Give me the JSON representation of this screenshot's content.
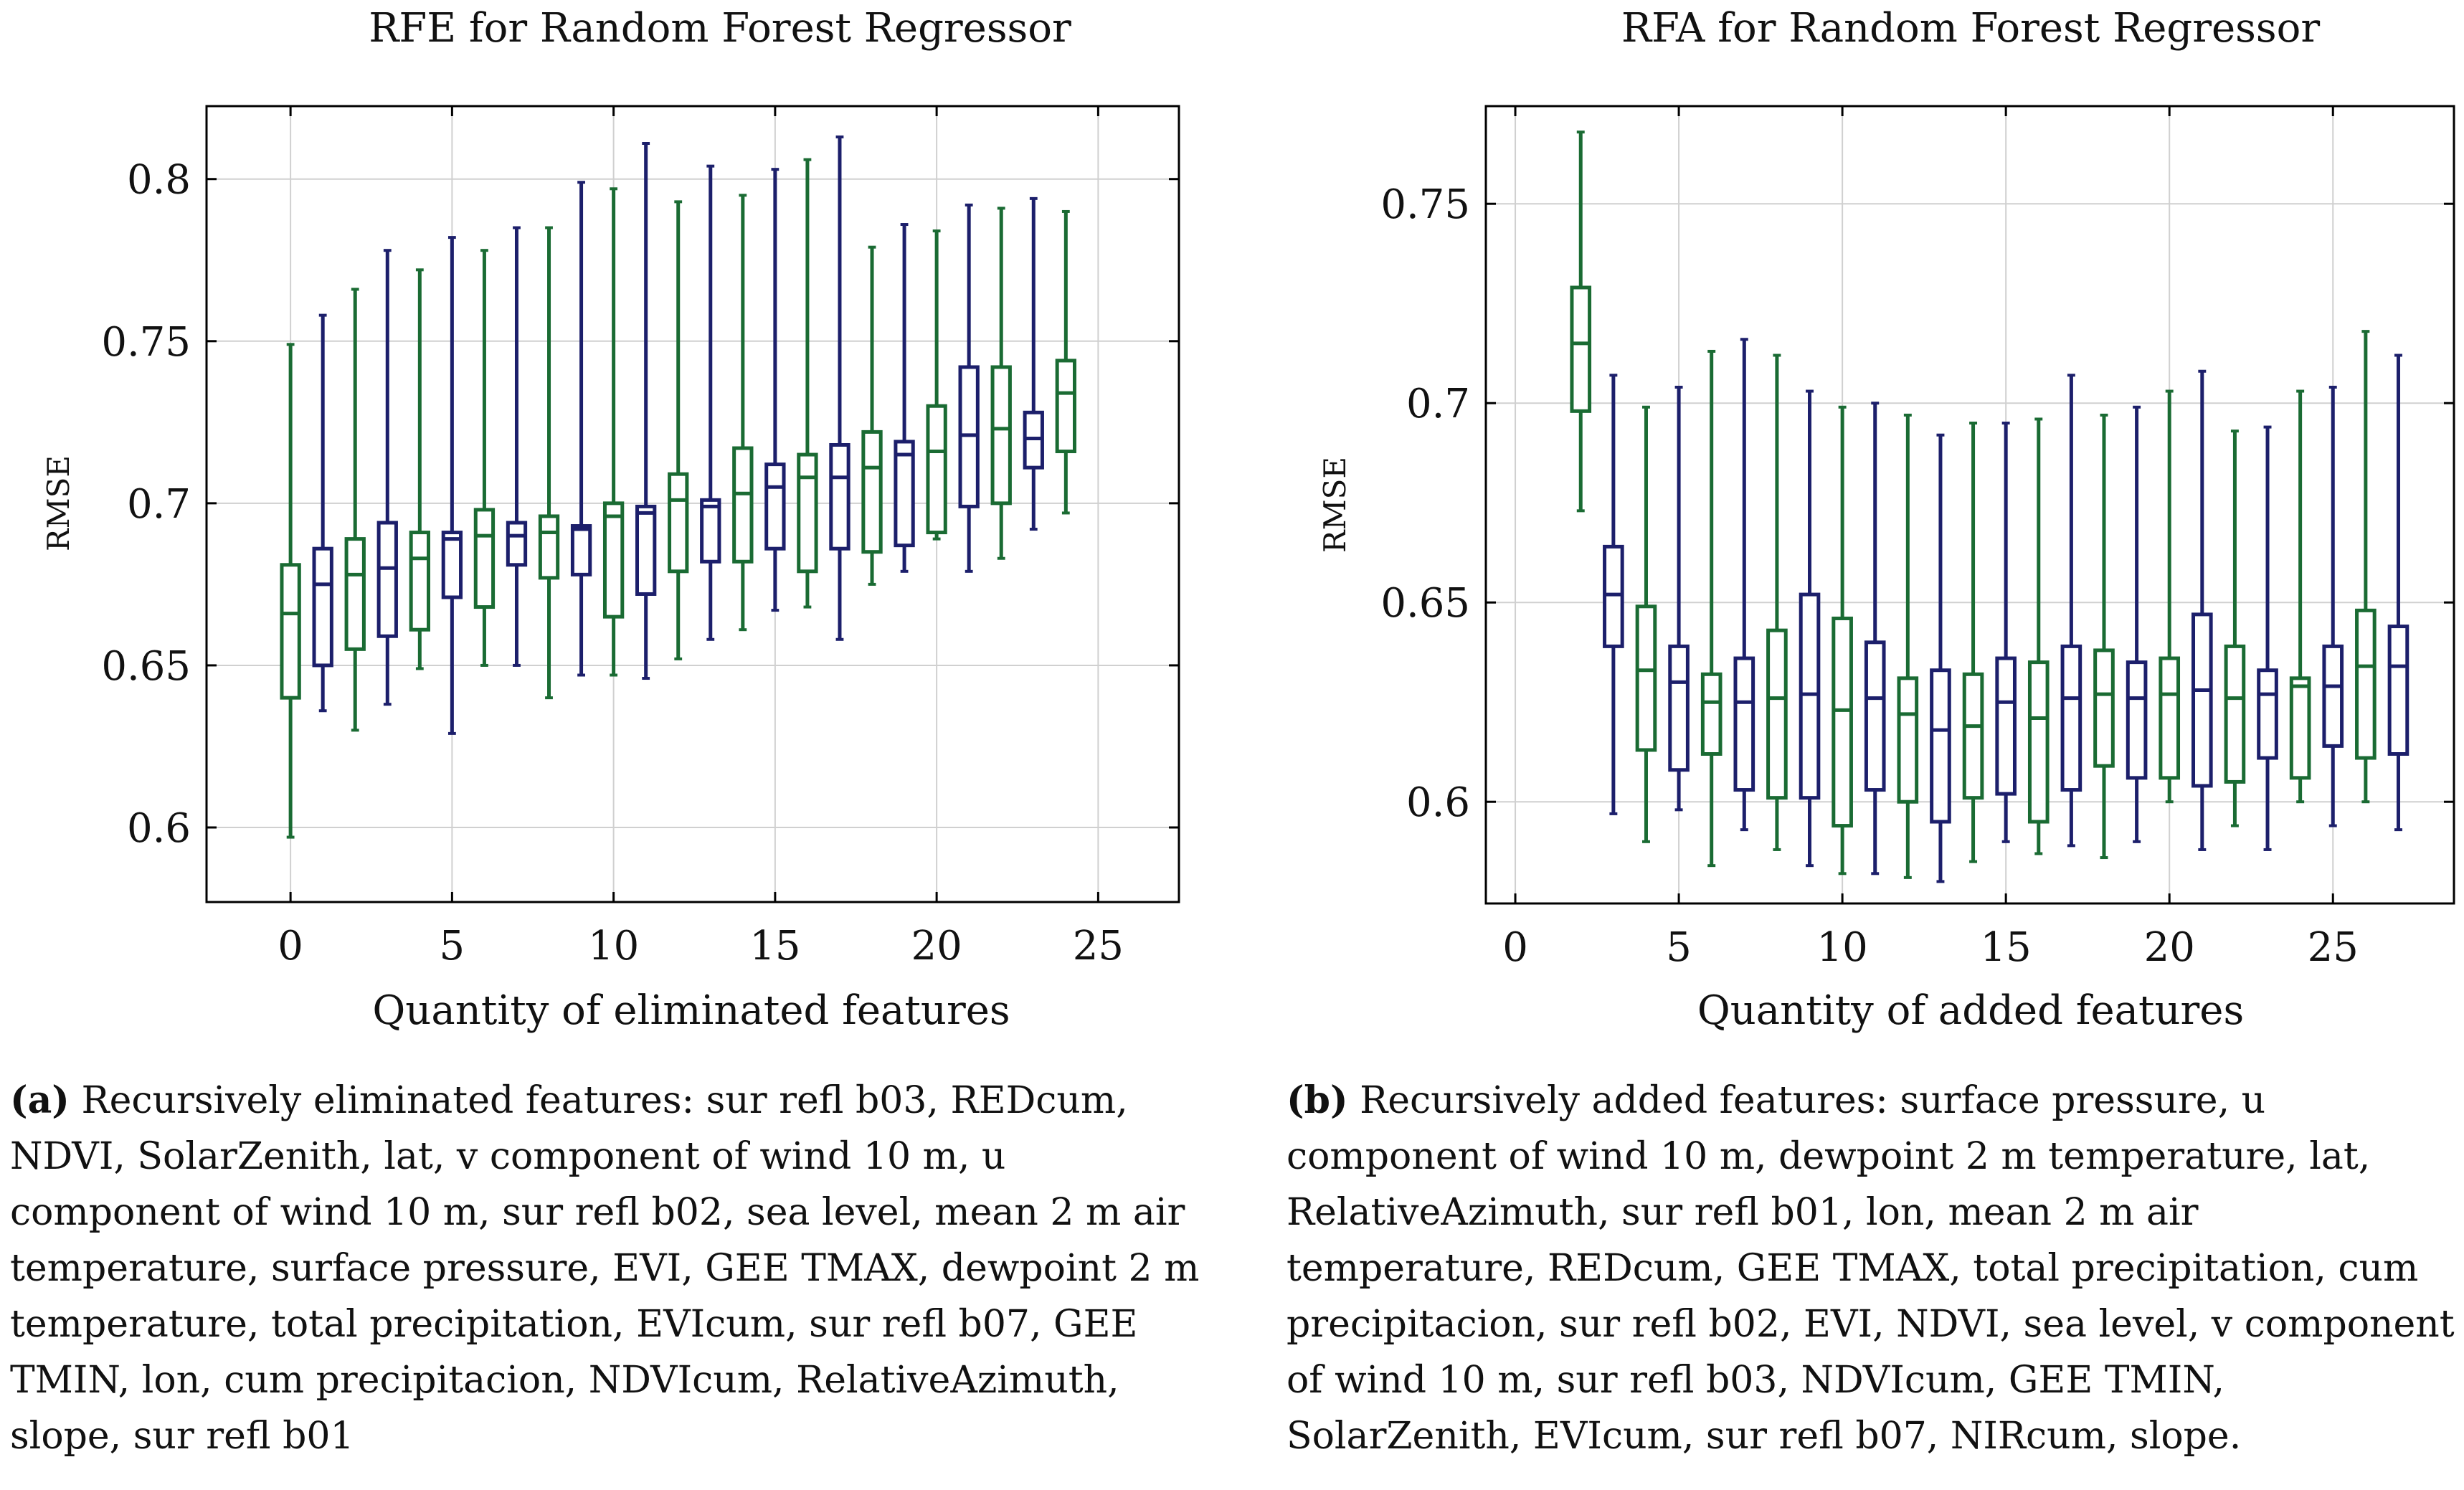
{
  "colors": {
    "green": "#1a6b33",
    "navy": "#1c1f6b",
    "axis": "#000000",
    "grid": "#d0d0d0"
  },
  "chart_data": [
    {
      "type": "box",
      "title": "RFE for Random Forest Regressor",
      "xlabel": "Quantity of eliminated features",
      "ylabel": "RMSE",
      "xlim": [
        -2.6,
        27.5
      ],
      "ylim": [
        0.577,
        0.8225
      ],
      "xticks": [
        0,
        5,
        10,
        15,
        20,
        25
      ],
      "xtick_labels": [
        "0",
        "5",
        "10",
        "15",
        "20",
        "25"
      ],
      "yticks": [
        0.6,
        0.65,
        0.7,
        0.75,
        0.8
      ],
      "ytick_labels": [
        "0.6",
        "0.65",
        "0.7",
        "0.75",
        "0.8"
      ],
      "boxes": [
        {
          "x": 0,
          "min": 0.597,
          "q1": 0.64,
          "median": 0.666,
          "q3": 0.681,
          "max": 0.749,
          "color": "green"
        },
        {
          "x": 1,
          "min": 0.636,
          "q1": 0.65,
          "median": 0.675,
          "q3": 0.686,
          "max": 0.758,
          "color": "navy"
        },
        {
          "x": 2,
          "min": 0.63,
          "q1": 0.655,
          "median": 0.678,
          "q3": 0.689,
          "max": 0.766,
          "color": "green"
        },
        {
          "x": 3,
          "min": 0.638,
          "q1": 0.659,
          "median": 0.68,
          "q3": 0.694,
          "max": 0.778,
          "color": "navy"
        },
        {
          "x": 4,
          "min": 0.649,
          "q1": 0.661,
          "median": 0.683,
          "q3": 0.691,
          "max": 0.772,
          "color": "green"
        },
        {
          "x": 5,
          "min": 0.629,
          "q1": 0.671,
          "median": 0.689,
          "q3": 0.691,
          "max": 0.782,
          "color": "navy"
        },
        {
          "x": 6,
          "min": 0.65,
          "q1": 0.668,
          "median": 0.69,
          "q3": 0.698,
          "max": 0.778,
          "color": "green"
        },
        {
          "x": 7,
          "min": 0.65,
          "q1": 0.681,
          "median": 0.69,
          "q3": 0.694,
          "max": 0.785,
          "color": "navy"
        },
        {
          "x": 8,
          "min": 0.64,
          "q1": 0.677,
          "median": 0.691,
          "q3": 0.696,
          "max": 0.785,
          "color": "green"
        },
        {
          "x": 9,
          "min": 0.647,
          "q1": 0.678,
          "median": 0.692,
          "q3": 0.693,
          "max": 0.799,
          "color": "navy"
        },
        {
          "x": 10,
          "min": 0.647,
          "q1": 0.665,
          "median": 0.696,
          "q3": 0.7,
          "max": 0.797,
          "color": "green"
        },
        {
          "x": 11,
          "min": 0.646,
          "q1": 0.672,
          "median": 0.697,
          "q3": 0.699,
          "max": 0.811,
          "color": "navy"
        },
        {
          "x": 12,
          "min": 0.652,
          "q1": 0.679,
          "median": 0.701,
          "q3": 0.709,
          "max": 0.793,
          "color": "green"
        },
        {
          "x": 13,
          "min": 0.658,
          "q1": 0.682,
          "median": 0.699,
          "q3": 0.701,
          "max": 0.804,
          "color": "navy"
        },
        {
          "x": 14,
          "min": 0.661,
          "q1": 0.682,
          "median": 0.703,
          "q3": 0.717,
          "max": 0.795,
          "color": "green"
        },
        {
          "x": 15,
          "min": 0.667,
          "q1": 0.686,
          "median": 0.705,
          "q3": 0.712,
          "max": 0.803,
          "color": "navy"
        },
        {
          "x": 16,
          "min": 0.668,
          "q1": 0.679,
          "median": 0.708,
          "q3": 0.715,
          "max": 0.806,
          "color": "green"
        },
        {
          "x": 17,
          "min": 0.658,
          "q1": 0.686,
          "median": 0.708,
          "q3": 0.718,
          "max": 0.813,
          "color": "navy"
        },
        {
          "x": 18,
          "min": 0.675,
          "q1": 0.685,
          "median": 0.711,
          "q3": 0.722,
          "max": 0.779,
          "color": "green"
        },
        {
          "x": 19,
          "min": 0.679,
          "q1": 0.687,
          "median": 0.715,
          "q3": 0.719,
          "max": 0.786,
          "color": "navy"
        },
        {
          "x": 20,
          "min": 0.689,
          "q1": 0.691,
          "median": 0.716,
          "q3": 0.73,
          "max": 0.784,
          "color": "green"
        },
        {
          "x": 21,
          "min": 0.679,
          "q1": 0.699,
          "median": 0.721,
          "q3": 0.742,
          "max": 0.792,
          "color": "navy"
        },
        {
          "x": 22,
          "min": 0.683,
          "q1": 0.7,
          "median": 0.723,
          "q3": 0.742,
          "max": 0.791,
          "color": "green"
        },
        {
          "x": 23,
          "min": 0.692,
          "q1": 0.711,
          "median": 0.72,
          "q3": 0.728,
          "max": 0.794,
          "color": "navy"
        },
        {
          "x": 24,
          "min": 0.697,
          "q1": 0.716,
          "median": 0.734,
          "q3": 0.744,
          "max": 0.79,
          "color": "green"
        }
      ]
    },
    {
      "type": "box",
      "title": "RFA for Random Forest Regressor",
      "xlabel": "Quantity of added features",
      "ylabel": "RMSE",
      "xlim": [
        -0.9,
        28.7
      ],
      "ylim": [
        0.5745,
        0.7745
      ],
      "xticks": [
        0,
        5,
        10,
        15,
        20,
        25
      ],
      "xtick_labels": [
        "0",
        "5",
        "10",
        "15",
        "20",
        "25"
      ],
      "yticks": [
        0.6,
        0.65,
        0.7,
        0.75
      ],
      "ytick_labels": [
        "0.6",
        "0.65",
        "0.7",
        "0.75"
      ],
      "boxes": [
        {
          "x": 2,
          "min": 0.673,
          "q1": 0.698,
          "median": 0.715,
          "q3": 0.729,
          "max": 0.768,
          "color": "green"
        },
        {
          "x": 3,
          "min": 0.597,
          "q1": 0.639,
          "median": 0.652,
          "q3": 0.664,
          "max": 0.707,
          "color": "navy"
        },
        {
          "x": 4,
          "min": 0.59,
          "q1": 0.613,
          "median": 0.633,
          "q3": 0.649,
          "max": 0.699,
          "color": "green"
        },
        {
          "x": 5,
          "min": 0.598,
          "q1": 0.608,
          "median": 0.63,
          "q3": 0.639,
          "max": 0.704,
          "color": "navy"
        },
        {
          "x": 6,
          "min": 0.584,
          "q1": 0.612,
          "median": 0.625,
          "q3": 0.632,
          "max": 0.713,
          "color": "green"
        },
        {
          "x": 7,
          "min": 0.593,
          "q1": 0.603,
          "median": 0.625,
          "q3": 0.636,
          "max": 0.716,
          "color": "navy"
        },
        {
          "x": 8,
          "min": 0.588,
          "q1": 0.601,
          "median": 0.626,
          "q3": 0.643,
          "max": 0.712,
          "color": "green"
        },
        {
          "x": 9,
          "min": 0.584,
          "q1": 0.601,
          "median": 0.627,
          "q3": 0.652,
          "max": 0.703,
          "color": "navy"
        },
        {
          "x": 10,
          "min": 0.582,
          "q1": 0.594,
          "median": 0.623,
          "q3": 0.646,
          "max": 0.699,
          "color": "green"
        },
        {
          "x": 11,
          "min": 0.582,
          "q1": 0.603,
          "median": 0.626,
          "q3": 0.64,
          "max": 0.7,
          "color": "navy"
        },
        {
          "x": 12,
          "min": 0.581,
          "q1": 0.6,
          "median": 0.622,
          "q3": 0.631,
          "max": 0.697,
          "color": "green"
        },
        {
          "x": 13,
          "min": 0.58,
          "q1": 0.595,
          "median": 0.618,
          "q3": 0.633,
          "max": 0.692,
          "color": "navy"
        },
        {
          "x": 14,
          "min": 0.585,
          "q1": 0.601,
          "median": 0.619,
          "q3": 0.632,
          "max": 0.695,
          "color": "green"
        },
        {
          "x": 15,
          "min": 0.59,
          "q1": 0.602,
          "median": 0.625,
          "q3": 0.636,
          "max": 0.695,
          "color": "navy"
        },
        {
          "x": 16,
          "min": 0.587,
          "q1": 0.595,
          "median": 0.621,
          "q3": 0.635,
          "max": 0.696,
          "color": "green"
        },
        {
          "x": 17,
          "min": 0.589,
          "q1": 0.603,
          "median": 0.626,
          "q3": 0.639,
          "max": 0.707,
          "color": "navy"
        },
        {
          "x": 18,
          "min": 0.586,
          "q1": 0.609,
          "median": 0.627,
          "q3": 0.638,
          "max": 0.697,
          "color": "green"
        },
        {
          "x": 19,
          "min": 0.59,
          "q1": 0.606,
          "median": 0.626,
          "q3": 0.635,
          "max": 0.699,
          "color": "navy"
        },
        {
          "x": 20,
          "min": 0.6,
          "q1": 0.606,
          "median": 0.627,
          "q3": 0.636,
          "max": 0.703,
          "color": "green"
        },
        {
          "x": 21,
          "min": 0.588,
          "q1": 0.604,
          "median": 0.628,
          "q3": 0.647,
          "max": 0.708,
          "color": "navy"
        },
        {
          "x": 22,
          "min": 0.594,
          "q1": 0.605,
          "median": 0.626,
          "q3": 0.639,
          "max": 0.693,
          "color": "green"
        },
        {
          "x": 23,
          "min": 0.588,
          "q1": 0.611,
          "median": 0.627,
          "q3": 0.633,
          "max": 0.694,
          "color": "navy"
        },
        {
          "x": 24,
          "min": 0.6,
          "q1": 0.606,
          "median": 0.629,
          "q3": 0.631,
          "max": 0.703,
          "color": "green"
        },
        {
          "x": 25,
          "min": 0.594,
          "q1": 0.614,
          "median": 0.629,
          "q3": 0.639,
          "max": 0.704,
          "color": "navy"
        },
        {
          "x": 26,
          "min": 0.6,
          "q1": 0.611,
          "median": 0.634,
          "q3": 0.648,
          "max": 0.718,
          "color": "green"
        },
        {
          "x": 27,
          "min": 0.593,
          "q1": 0.612,
          "median": 0.634,
          "q3": 0.644,
          "max": 0.712,
          "color": "navy"
        }
      ]
    }
  ],
  "captions": [
    {
      "label": "(a)",
      "text": "Recursively eliminated features: sur refl b03, REDcum, NDVI, SolarZenith, lat, v component of wind 10 m, u component of wind 10 m, sur refl b02, sea level, mean 2 m air temperature, surface pressure, EVI, GEE TMAX, dewpoint 2 m temperature, total precipitation, EVIcum, sur refl b07, GEE TMIN, lon, cum precipitacion, NDVIcum, RelativeAzimuth, slope, sur refl b01"
    },
    {
      "label": "(b)",
      "text": "Recursively added features: surface pressure, u component of wind 10 m, dewpoint 2 m temperature, lat, RelativeAzimuth, sur refl b01, lon, mean 2 m air temperature, REDcum, GEE TMAX, total precipitation, cum precipitacion, sur refl b02, EVI, NDVI, sea level, v component of wind 10 m, sur refl b03, NDVIcum, GEE TMIN, SolarZenith, EVIcum, sur refl b07, NIRcum, slope."
    }
  ]
}
